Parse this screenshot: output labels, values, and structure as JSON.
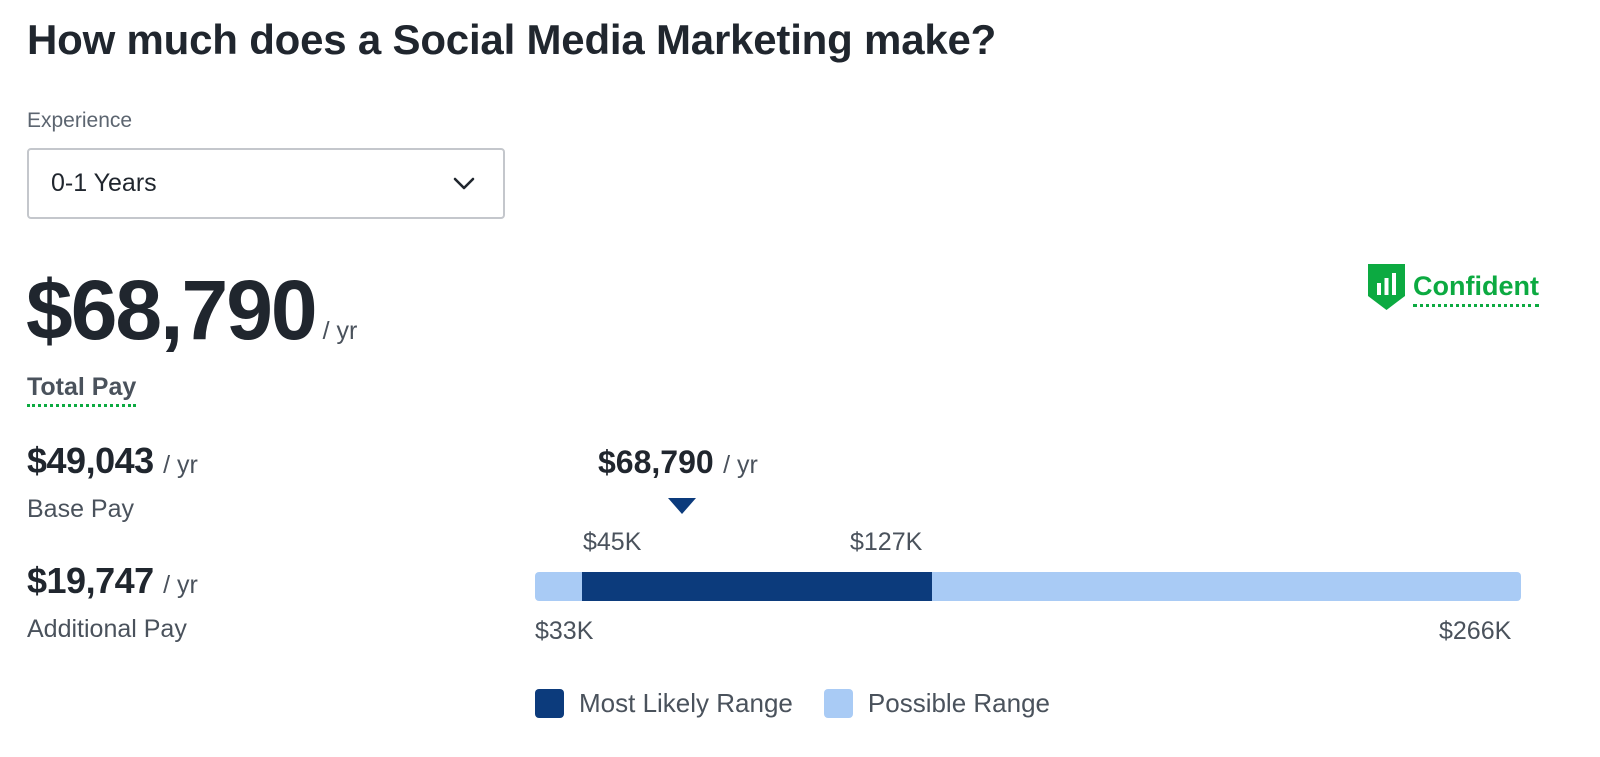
{
  "page": {
    "title": "How much does a Social Media Marketing make?"
  },
  "experience": {
    "label": "Experience",
    "selected": "0-1 Years"
  },
  "total_pay": {
    "amount": "$68,790",
    "unit": "/ yr",
    "label": "Total Pay"
  },
  "confidence": {
    "label": "Confident",
    "icon": "bar-chart-shield-icon",
    "color": "#0caa41"
  },
  "base_pay": {
    "amount": "$49,043",
    "unit": "/ yr",
    "label": "Base Pay"
  },
  "additional_pay": {
    "amount": "$19,747",
    "unit": "/ yr",
    "label": "Additional Pay"
  },
  "range": {
    "median_amount": "$68,790",
    "median_unit": "/ yr",
    "likely_low": "$45K",
    "likely_high": "$127K",
    "possible_low": "$33K",
    "possible_high": "$266K",
    "likely_color": "#0c3b7c",
    "possible_color": "#a9cbf5"
  },
  "legend": {
    "most_likely": "Most Likely Range",
    "possible": "Possible Range"
  }
}
